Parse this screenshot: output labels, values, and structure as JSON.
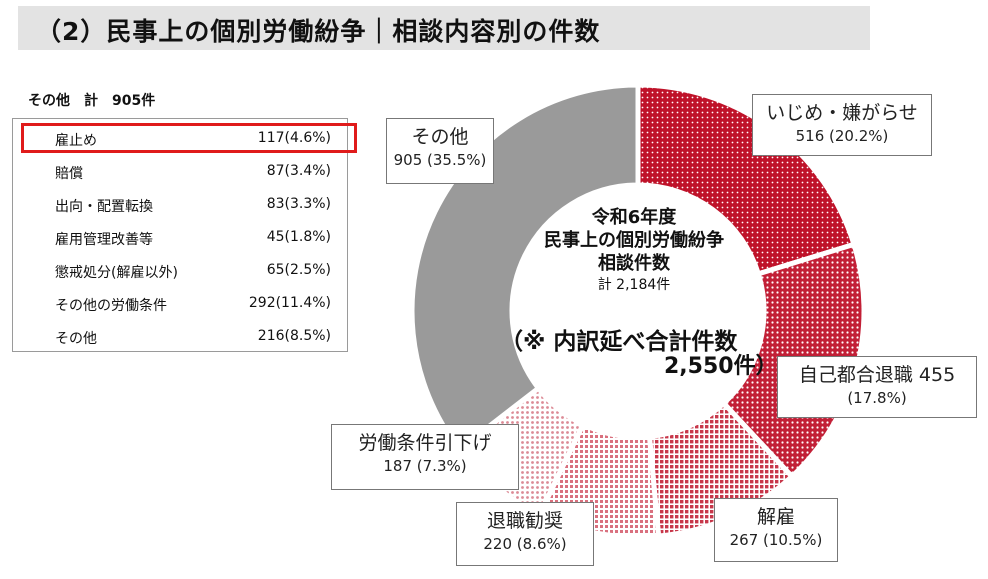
{
  "header": {
    "title": "（2）民事上の個別労働紛争｜相談内容別の件数"
  },
  "other_breakdown": {
    "heading": "その他　計　905件",
    "items": [
      {
        "label": "雇止め",
        "value": "117(4.6%)",
        "highlighted": true
      },
      {
        "label": "賠償",
        "value": "87(3.4%)"
      },
      {
        "label": "出向・配置転換",
        "value": "83(3.3%)"
      },
      {
        "label": "雇用管理改善等",
        "value": "45(1.8%)"
      },
      {
        "label": "懲戒処分(解雇以外)",
        "value": "65(2.5%)"
      },
      {
        "label": "その他の労働条件",
        "value": "292(11.4%)"
      },
      {
        "label": "その他",
        "value": "216(8.5%)"
      }
    ],
    "highlight_color": "#e01b1b"
  },
  "chart_data": {
    "type": "pie",
    "style": "donut",
    "start": "12 o'clock",
    "direction": "clockwise",
    "center_text": {
      "line1": "令和6年度",
      "line2": "民事上の個別労働紛争",
      "line3": "相談件数",
      "total": "計 2,184件",
      "note_line1": "（※ 内訳延べ合計件数",
      "note_line2": "2,550件）"
    },
    "slices": [
      {
        "label": "いじめ・嫌がらせ",
        "value": 516,
        "value_label": "516 (20.2%)",
        "color": "#c0152d",
        "pattern": "dots-dense"
      },
      {
        "label": "自己都合退職",
        "value": 455,
        "value_label": "455",
        "value_label2": "(17.8%)",
        "color": "#c5243a",
        "pattern": "dots"
      },
      {
        "label": "解雇",
        "value": 267,
        "value_label": "267 (10.5%)",
        "color": "#cc4a5a",
        "pattern": "grid"
      },
      {
        "label": "退職勧奨",
        "value": 220,
        "value_label": "220 (8.6%)",
        "color": "#dd8590",
        "pattern": "grid-light"
      },
      {
        "label": "労働条件引下げ",
        "value": 187,
        "value_label": "187 (7.3%)",
        "color": "#e9b3ba",
        "pattern": "dots-light"
      },
      {
        "label": "その他",
        "value": 905,
        "value_label": "905 (35.5%)",
        "color": "#9a9a9a",
        "pattern": "solid"
      }
    ]
  }
}
